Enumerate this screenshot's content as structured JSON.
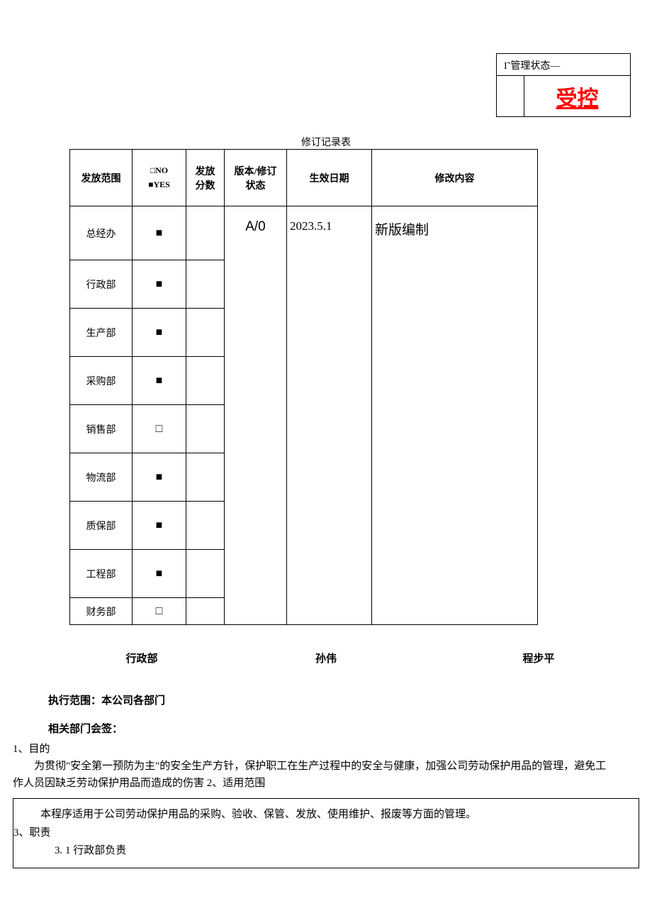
{
  "status": {
    "label": "I˜管理状态―",
    "stamp": "受控",
    "stamp_color": "#ff0000"
  },
  "table": {
    "title": "修订记录表",
    "headers": {
      "scope": "发放范围",
      "yesno_no": "□NO",
      "yesno_yes": "■YES",
      "copies_l1": "发放",
      "copies_l2": "分数",
      "version_l1": "版本/修订",
      "version_l2": "状态",
      "effdate": "生效日期",
      "content": "修改内容"
    },
    "version": "A/0",
    "effective_date": "2023.5.1",
    "change_content": "新版编制",
    "rows": [
      {
        "dept": "总经办",
        "checked": true
      },
      {
        "dept": "行政部",
        "checked": true
      },
      {
        "dept": "生产部",
        "checked": true
      },
      {
        "dept": "采购部",
        "checked": true
      },
      {
        "dept": "销售部",
        "checked": false
      },
      {
        "dept": "物流部",
        "checked": true
      },
      {
        "dept": "质保部",
        "checked": true
      },
      {
        "dept": "工程部",
        "checked": true
      },
      {
        "dept": "财务部",
        "checked": false
      }
    ],
    "glyph_filled": "■",
    "glyph_empty": "□"
  },
  "signatures": {
    "dept": "行政部",
    "name1": "孙伟",
    "name2": "程步平"
  },
  "exec_scope": "执行范围：本公司各部门",
  "dept_countersign": "相关部门会签：",
  "section1": {
    "title": "1、目的",
    "body_line1": "为贯彻\"安全第一预防为主\"的安全生产方针，保护职工在生产过程中的安全与健康，加强公司劳动保护用品的管理，避免工",
    "body_line2": "作人员因缺乏劳动保护用品而造成的伤害 2、适用范围"
  },
  "bottom": {
    "line1": "本程序适用于公司劳动保护用品的采购、验收、保管、发放、使用维护、报废等方面的管理。",
    "line2": "3、职责",
    "line3": "3. 1 行政部负责"
  }
}
